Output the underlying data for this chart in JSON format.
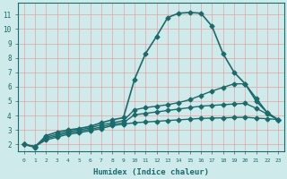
{
  "title": "",
  "xlabel": "Humidex (Indice chaleur)",
  "ylabel": "",
  "xlim": [
    -0.5,
    23.5
  ],
  "ylim": [
    1.5,
    11.8
  ],
  "yticks": [
    2,
    3,
    4,
    5,
    6,
    7,
    8,
    9,
    10,
    11
  ],
  "xticks": [
    0,
    1,
    2,
    3,
    4,
    5,
    6,
    7,
    8,
    9,
    10,
    11,
    12,
    13,
    14,
    15,
    16,
    17,
    18,
    19,
    20,
    21,
    22,
    23
  ],
  "bg_color": "#ceeaea",
  "grid_color_major": "#e8a0a0",
  "grid_color_minor": "#ffffff",
  "line_color": "#1a6b6b",
  "series": [
    {
      "x": [
        0,
        1,
        2,
        3,
        4,
        5,
        6,
        7,
        8,
        9,
        10,
        11,
        12,
        13,
        14,
        15,
        16,
        17,
        18,
        19,
        20,
        21,
        22,
        23
      ],
      "y": [
        2.0,
        1.8,
        2.6,
        2.85,
        3.0,
        3.1,
        3.25,
        3.5,
        3.7,
        3.85,
        6.5,
        8.3,
        9.5,
        10.8,
        11.1,
        11.15,
        11.1,
        10.2,
        8.3,
        7.0,
        6.2,
        5.0,
        4.2,
        3.7
      ],
      "marker": "D",
      "markersize": 2.5,
      "linewidth": 1.2
    },
    {
      "x": [
        0,
        1,
        2,
        3,
        4,
        5,
        6,
        7,
        8,
        9,
        10,
        11,
        12,
        13,
        14,
        15,
        16,
        17,
        18,
        19,
        20,
        21,
        22,
        23
      ],
      "y": [
        2.0,
        1.85,
        2.5,
        2.7,
        2.9,
        3.0,
        3.15,
        3.35,
        3.5,
        3.65,
        4.4,
        4.55,
        4.65,
        4.75,
        4.9,
        5.1,
        5.4,
        5.7,
        5.95,
        6.2,
        6.2,
        5.2,
        4.2,
        3.7
      ],
      "marker": "D",
      "markersize": 2.5,
      "linewidth": 1.0
    },
    {
      "x": [
        0,
        1,
        2,
        3,
        4,
        5,
        6,
        7,
        8,
        9,
        10,
        11,
        12,
        13,
        14,
        15,
        16,
        17,
        18,
        19,
        20,
        21,
        22,
        23
      ],
      "y": [
        2.0,
        1.85,
        2.4,
        2.6,
        2.8,
        2.9,
        3.05,
        3.2,
        3.4,
        3.5,
        4.05,
        4.15,
        4.25,
        4.35,
        4.45,
        4.55,
        4.65,
        4.7,
        4.75,
        4.8,
        4.85,
        4.5,
        4.1,
        3.7
      ],
      "marker": "D",
      "markersize": 2.5,
      "linewidth": 1.0
    },
    {
      "x": [
        0,
        1,
        2,
        3,
        4,
        5,
        6,
        7,
        8,
        9,
        10,
        11,
        12,
        13,
        14,
        15,
        16,
        17,
        18,
        19,
        20,
        21,
        22,
        23
      ],
      "y": [
        2.0,
        1.85,
        2.3,
        2.5,
        2.7,
        2.8,
        2.95,
        3.1,
        3.3,
        3.4,
        3.5,
        3.55,
        3.6,
        3.65,
        3.7,
        3.75,
        3.8,
        3.82,
        3.84,
        3.86,
        3.88,
        3.82,
        3.78,
        3.72
      ],
      "marker": "D",
      "markersize": 2.5,
      "linewidth": 1.0
    }
  ]
}
